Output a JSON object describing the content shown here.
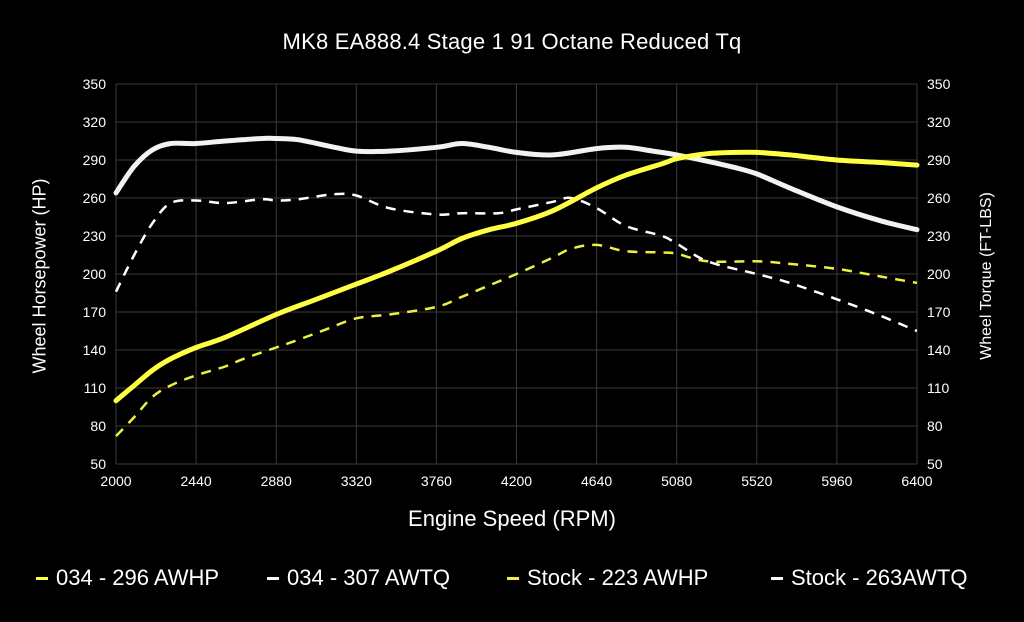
{
  "chart_data": {
    "type": "line",
    "title": "MK8 EA888.4 Stage 1 91 Octane Reduced Tq",
    "xlabel": "Engine Speed (RPM)",
    "ylabel": "Wheel Horsepower (HP)",
    "ylabel_right": "Wheel Torque (FT-LBS)",
    "xlim": [
      2000,
      6400
    ],
    "ylim": [
      50,
      350
    ],
    "x_ticks": [
      2000,
      2440,
      2880,
      3320,
      3760,
      4200,
      4640,
      5080,
      5520,
      5960,
      6400
    ],
    "y_ticks": [
      50,
      80,
      110,
      140,
      170,
      200,
      230,
      260,
      290,
      320,
      350
    ],
    "grid": true,
    "legend_position": "bottom",
    "series": [
      {
        "name": "034 - 296 AWHP",
        "color": "#ffff44",
        "dashed": false,
        "points": [
          [
            2000,
            100
          ],
          [
            2100,
            112
          ],
          [
            2200,
            124
          ],
          [
            2300,
            133
          ],
          [
            2440,
            142
          ],
          [
            2600,
            150
          ],
          [
            2880,
            168
          ],
          [
            3100,
            180
          ],
          [
            3320,
            192
          ],
          [
            3500,
            202
          ],
          [
            3760,
            218
          ],
          [
            3900,
            228
          ],
          [
            4050,
            235
          ],
          [
            4200,
            240
          ],
          [
            4400,
            250
          ],
          [
            4640,
            268
          ],
          [
            4800,
            278
          ],
          [
            5000,
            287
          ],
          [
            5080,
            291
          ],
          [
            5250,
            295
          ],
          [
            5400,
            296
          ],
          [
            5520,
            296
          ],
          [
            5700,
            294
          ],
          [
            5960,
            290
          ],
          [
            6200,
            288
          ],
          [
            6400,
            286
          ]
        ]
      },
      {
        "name": "034 - 307 AWTQ",
        "color": "#f2f2f2",
        "dashed": false,
        "points": [
          [
            2000,
            264
          ],
          [
            2100,
            285
          ],
          [
            2200,
            298
          ],
          [
            2300,
            303
          ],
          [
            2440,
            303
          ],
          [
            2600,
            305
          ],
          [
            2800,
            307
          ],
          [
            2880,
            307
          ],
          [
            3000,
            306
          ],
          [
            3200,
            300
          ],
          [
            3320,
            297
          ],
          [
            3500,
            297
          ],
          [
            3760,
            300
          ],
          [
            3900,
            303
          ],
          [
            4050,
            300
          ],
          [
            4200,
            296
          ],
          [
            4400,
            294
          ],
          [
            4640,
            299
          ],
          [
            4800,
            300
          ],
          [
            4950,
            297
          ],
          [
            5080,
            294
          ],
          [
            5250,
            289
          ],
          [
            5400,
            284
          ],
          [
            5520,
            279
          ],
          [
            5700,
            268
          ],
          [
            5960,
            253
          ],
          [
            6200,
            242
          ],
          [
            6400,
            235
          ]
        ]
      },
      {
        "name": "Stock - 223 AWHP",
        "color": "#eeee44",
        "dashed": true,
        "points": [
          [
            2000,
            72
          ],
          [
            2100,
            87
          ],
          [
            2200,
            103
          ],
          [
            2300,
            112
          ],
          [
            2440,
            120
          ],
          [
            2600,
            127
          ],
          [
            2700,
            133
          ],
          [
            2880,
            142
          ],
          [
            3000,
            148
          ],
          [
            3150,
            156
          ],
          [
            3320,
            165
          ],
          [
            3500,
            168
          ],
          [
            3760,
            174
          ],
          [
            3900,
            182
          ],
          [
            4100,
            194
          ],
          [
            4200,
            200
          ],
          [
            4400,
            213
          ],
          [
            4500,
            220
          ],
          [
            4640,
            223
          ],
          [
            4800,
            218
          ],
          [
            5000,
            217
          ],
          [
            5080,
            216
          ],
          [
            5250,
            210
          ],
          [
            5520,
            210
          ],
          [
            5700,
            208
          ],
          [
            5960,
            204
          ],
          [
            6200,
            198
          ],
          [
            6400,
            193
          ]
        ]
      },
      {
        "name": "Stock - 263AWTQ",
        "color": "#ffffff",
        "dashed": true,
        "points": [
          [
            2000,
            186
          ],
          [
            2100,
            215
          ],
          [
            2200,
            240
          ],
          [
            2300,
            256
          ],
          [
            2440,
            258
          ],
          [
            2600,
            256
          ],
          [
            2800,
            259
          ],
          [
            2880,
            258
          ],
          [
            3000,
            259
          ],
          [
            3200,
            263
          ],
          [
            3320,
            262
          ],
          [
            3500,
            252
          ],
          [
            3760,
            247
          ],
          [
            3900,
            248
          ],
          [
            4100,
            248
          ],
          [
            4200,
            251
          ],
          [
            4400,
            257
          ],
          [
            4500,
            260
          ],
          [
            4640,
            252
          ],
          [
            4800,
            238
          ],
          [
            5000,
            230
          ],
          [
            5080,
            224
          ],
          [
            5250,
            210
          ],
          [
            5520,
            200
          ],
          [
            5700,
            193
          ],
          [
            5960,
            180
          ],
          [
            6200,
            167
          ],
          [
            6400,
            155
          ]
        ]
      }
    ]
  }
}
